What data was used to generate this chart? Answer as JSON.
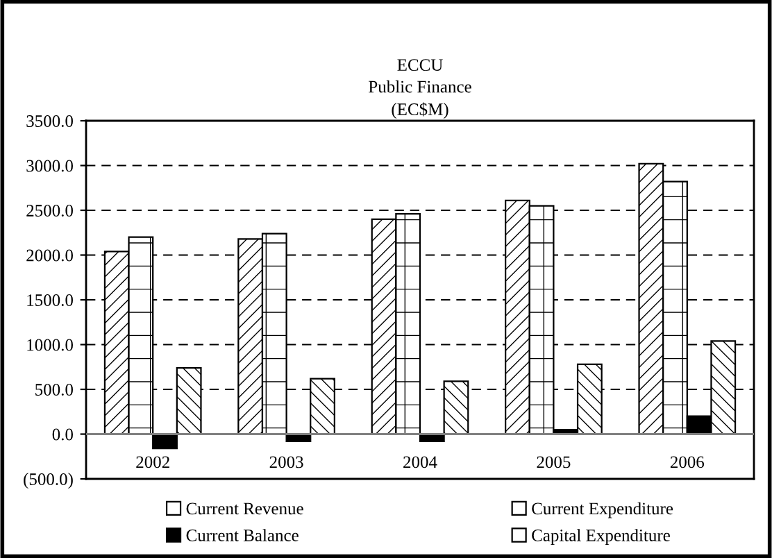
{
  "chart_data": {
    "type": "bar",
    "title": "ECCU\nPublic Finance\n(EC$M)",
    "categories": [
      "2002",
      "2003",
      "2004",
      "2005",
      "2006"
    ],
    "series": [
      {
        "name": "Current Revenue",
        "color": "#ffffff",
        "values": [
          2040,
          2180,
          2400,
          2610,
          3020
        ]
      },
      {
        "name": "Current Expenditure",
        "color": "#ffffff",
        "values": [
          2200,
          2240,
          2460,
          2550,
          2820
        ]
      },
      {
        "name": "Current Balance",
        "color": "#000000",
        "values": [
          -160,
          -80,
          -80,
          50,
          200
        ]
      },
      {
        "name": "Capital Expenditure",
        "color": "#ffffff",
        "values": [
          740,
          620,
          590,
          780,
          1040
        ]
      }
    ],
    "ylim": [
      -500,
      3500
    ],
    "yticks": [
      {
        "value": -500,
        "label": "(500.0)"
      },
      {
        "value": 0,
        "label": "0.0"
      },
      {
        "value": 500,
        "label": "500.0"
      },
      {
        "value": 1000,
        "label": "1000.0"
      },
      {
        "value": 1500,
        "label": "1500.0"
      },
      {
        "value": 2000,
        "label": "2000.0"
      },
      {
        "value": 2500,
        "label": "2500.0"
      },
      {
        "value": 3000,
        "label": "3000.0"
      },
      {
        "value": 3500,
        "label": "3500.0"
      }
    ],
    "grid": "y",
    "legend": "bottom"
  }
}
